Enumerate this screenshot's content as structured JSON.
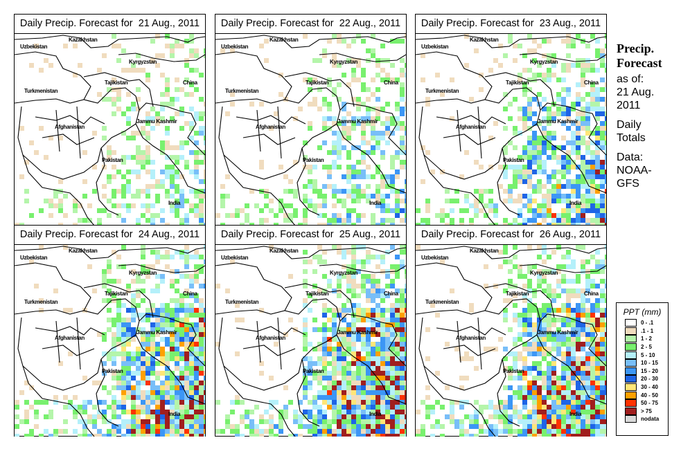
{
  "panels": [
    {
      "title": "Daily Precip. Forecast for  21 Aug., 2011",
      "intensity": 0.35
    },
    {
      "title": "Daily Precip. Forecast for  22 Aug., 2011",
      "intensity": 0.45
    },
    {
      "title": "Daily Precip. Forecast for  23 Aug., 2011",
      "intensity": 0.6
    },
    {
      "title": "Daily Precip. Forecast for  24 Aug., 2011",
      "intensity": 0.7
    },
    {
      "title": "Daily Precip. Forecast for  25 Aug., 2011",
      "intensity": 0.8
    },
    {
      "title": "Daily Precip. Forecast for  26 Aug., 2011",
      "intensity": 0.75
    }
  ],
  "map_labels": {
    "kazakhstan": "Kazakhstan",
    "uzbekistan": "Uzbekistan",
    "kyrgyzstan": "Kyrgyzstan",
    "tajikistan": "Tajikistan",
    "china": "China",
    "turkmenistan": "Turkmenistan",
    "afghanistan": "Afghanistan",
    "jammu_kashmir": "Jammu Kashmir",
    "pakistan": "Pakistan",
    "india": "India"
  },
  "side": {
    "title1": "Precip.",
    "title2": "Forecast",
    "asof1": "as of:",
    "asof2": "21 Aug.",
    "asof3": "2011",
    "daily1": "Daily",
    "daily2": "Totals",
    "data1": "Data:",
    "data2": "NOAA-",
    "data3": "GFS"
  },
  "legend": {
    "title": "PPT (mm)",
    "items": [
      {
        "label": "0 - .1",
        "color": "#ffffff"
      },
      {
        "label": ".1 - 1",
        "color": "#f0dcbe"
      },
      {
        "label": "1 - 2",
        "color": "#b4f5aa"
      },
      {
        "label": "2 - 5",
        "color": "#78f06e"
      },
      {
        "label": "5 - 10",
        "color": "#b4f0fa"
      },
      {
        "label": "10 - 15",
        "color": "#78bef8"
      },
      {
        "label": "15 - 20",
        "color": "#3c96f5"
      },
      {
        "label": "20 - 30",
        "color": "#1e64e6"
      },
      {
        "label": "30 - 40",
        "color": "#ffe678"
      },
      {
        "label": "40 - 50",
        "color": "#ffa000"
      },
      {
        "label": "50 - 75",
        "color": "#ff3200"
      },
      {
        "label": "> 75",
        "color": "#a01e1e"
      },
      {
        "label": "nodata",
        "color": "#d9d9d9"
      }
    ]
  }
}
